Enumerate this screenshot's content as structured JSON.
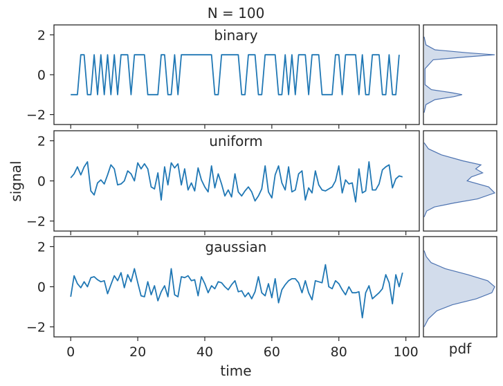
{
  "chart_data": {
    "type": "line",
    "title": "N = 100",
    "xlabel": "time",
    "ylabel": "signal",
    "side_label": "pdf",
    "xlim": [
      -5,
      104
    ],
    "ylim": [
      -2.5,
      2.5
    ],
    "x_ticks": [
      0,
      20,
      40,
      60,
      80,
      100
    ],
    "y_ticks": [
      -2,
      0,
      2
    ],
    "grid": false,
    "color": "#1f77b4",
    "pdf_color": "#4c72b0",
    "panels": [
      {
        "name": "binary",
        "values": [
          -1,
          -1,
          -1,
          1,
          1,
          -1,
          -1,
          1,
          -1,
          1,
          -1,
          1,
          -1,
          1,
          -1,
          1,
          1,
          1,
          -1,
          1,
          1,
          1,
          1,
          -1,
          -1,
          -1,
          -1,
          1,
          1,
          -1,
          -1,
          1,
          -1,
          1,
          1,
          1,
          1,
          1,
          1,
          1,
          1,
          1,
          1,
          -1,
          -1,
          1,
          1,
          1,
          1,
          1,
          1,
          -1,
          -1,
          1,
          1,
          1,
          -1,
          -1,
          1,
          1,
          1,
          1,
          -1,
          -1,
          1,
          -1,
          1,
          -1,
          1,
          1,
          1,
          -1,
          1,
          1,
          1,
          -1,
          -1,
          -1,
          -1,
          1,
          1,
          -1,
          1,
          1,
          1,
          1,
          -1,
          1,
          -1,
          -1,
          1,
          1,
          1,
          -1,
          -1,
          1,
          -1,
          -1,
          1
        ],
        "pdf": {
          "y": [
            -1.9,
            -1.5,
            -1.25,
            -1.1,
            -1.0,
            -0.9,
            -0.75,
            -0.5,
            0.3,
            0.75,
            0.9,
            1.0,
            1.1,
            1.25,
            1.5,
            1.9
          ],
          "d": [
            0.0,
            0.02,
            0.12,
            0.33,
            0.42,
            0.3,
            0.08,
            0.01,
            0.01,
            0.1,
            0.48,
            0.78,
            0.48,
            0.12,
            0.02,
            0.0
          ]
        }
      },
      {
        "name": "uniform",
        "values": [
          0.15,
          0.35,
          0.7,
          0.3,
          0.7,
          0.95,
          -0.5,
          -0.7,
          -0.1,
          0.05,
          -0.15,
          0.3,
          0.8,
          0.6,
          -0.2,
          -0.15,
          0.0,
          0.5,
          0.35,
          0.0,
          0.9,
          0.6,
          0.85,
          0.6,
          -0.3,
          -0.4,
          0.4,
          -0.95,
          0.7,
          -0.2,
          0.9,
          0.65,
          0.85,
          -0.2,
          0.6,
          -0.45,
          -0.1,
          -0.5,
          0.65,
          0.05,
          -0.3,
          -0.55,
          0.75,
          -0.35,
          0.35,
          -0.15,
          -0.75,
          -0.45,
          -0.8,
          0.35,
          -0.55,
          -0.75,
          -0.5,
          -0.3,
          -0.55,
          -1.0,
          -0.75,
          -0.4,
          0.75,
          -0.55,
          -0.85,
          0.3,
          0.75,
          -0.1,
          -0.45,
          0.7,
          -0.55,
          -0.45,
          0.35,
          0.5,
          -0.95,
          -0.35,
          -0.6,
          0.5,
          -0.2,
          -0.45,
          -0.5,
          -0.4,
          -0.3,
          0.0,
          0.75,
          -0.6,
          0.05,
          -0.15,
          -0.1,
          -1.05,
          0.6,
          -0.6,
          -0.5,
          0.95,
          -0.45,
          -0.45,
          -0.15,
          0.55,
          0.7,
          0.8,
          -0.35,
          0.1,
          0.25,
          0.2
        ],
        "pdf": {
          "y": [
            -1.8,
            -1.5,
            -1.3,
            -1.1,
            -0.9,
            -0.6,
            -0.3,
            0.0,
            0.2,
            0.4,
            0.6,
            0.8,
            1.0,
            1.3,
            1.6,
            1.9
          ],
          "d": [
            0.0,
            0.03,
            0.12,
            0.35,
            0.62,
            0.82,
            0.75,
            0.5,
            0.55,
            0.68,
            0.6,
            0.66,
            0.45,
            0.2,
            0.05,
            0.0
          ]
        }
      },
      {
        "name": "gaussian",
        "values": [
          -0.5,
          0.55,
          0.15,
          -0.05,
          0.25,
          0.0,
          0.45,
          0.5,
          0.35,
          0.25,
          0.3,
          -0.35,
          0.1,
          0.55,
          0.3,
          0.7,
          -0.05,
          0.6,
          0.25,
          0.9,
          0.2,
          -0.45,
          -0.5,
          0.25,
          -0.4,
          0.05,
          -0.7,
          -0.25,
          0.05,
          -0.5,
          0.9,
          -0.4,
          -0.5,
          0.5,
          0.45,
          0.55,
          0.3,
          0.35,
          -0.45,
          0.5,
          0.15,
          -0.3,
          0.05,
          -0.1,
          0.25,
          0.2,
          0.0,
          -0.15,
          0.1,
          0.3,
          -0.25,
          -0.2,
          -0.5,
          -0.3,
          -0.6,
          -0.25,
          0.5,
          -0.3,
          -0.45,
          0.15,
          -0.55,
          0.4,
          -0.8,
          -0.15,
          0.1,
          0.3,
          0.4,
          0.4,
          0.2,
          -0.3,
          0.3,
          -0.3,
          -0.65,
          0.3,
          0.25,
          0.2,
          1.1,
          0.0,
          -0.1,
          0.3,
          0.15,
          -0.15,
          -0.4,
          0.0,
          -0.3,
          -0.3,
          -0.25,
          -1.55,
          -0.3,
          0.05,
          -0.6,
          -0.45,
          -0.3,
          -0.1,
          0.6,
          0.2,
          -0.85,
          0.6,
          0.0,
          0.7
        ],
        "pdf": {
          "y": [
            -2.0,
            -1.6,
            -1.2,
            -0.9,
            -0.6,
            -0.3,
            0.0,
            0.3,
            0.6,
            0.9,
            1.2,
            1.5,
            1.8
          ],
          "d": [
            0.0,
            0.06,
            0.18,
            0.4,
            0.74,
            0.96,
            1.0,
            0.9,
            0.62,
            0.3,
            0.1,
            0.03,
            0.0
          ]
        }
      }
    ]
  }
}
